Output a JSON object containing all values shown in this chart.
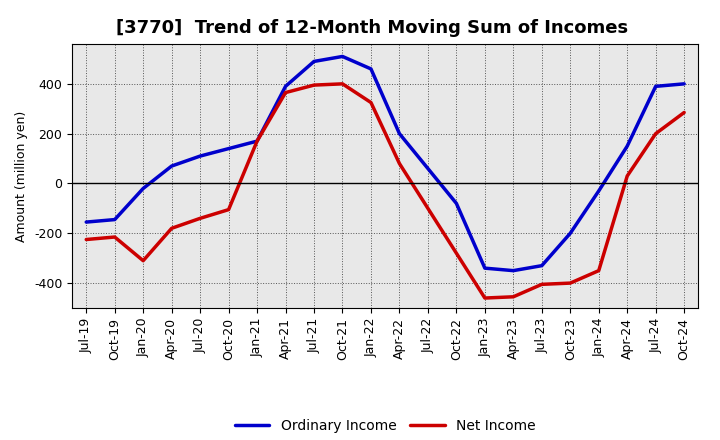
{
  "title": "[3770]  Trend of 12-Month Moving Sum of Incomes",
  "ylabel": "Amount (million yen)",
  "xlabels": [
    "Jul-19",
    "Oct-19",
    "Jan-20",
    "Apr-20",
    "Jul-20",
    "Oct-20",
    "Jan-21",
    "Apr-21",
    "Jul-21",
    "Oct-21",
    "Jan-22",
    "Apr-22",
    "Jul-22",
    "Oct-22",
    "Jan-23",
    "Apr-23",
    "Jul-23",
    "Oct-23",
    "Jan-24",
    "Apr-24",
    "Jul-24",
    "Oct-24"
  ],
  "ordinary_income": [
    -155,
    -145,
    -20,
    70,
    110,
    140,
    170,
    390,
    490,
    510,
    460,
    200,
    60,
    -80,
    -340,
    -350,
    -330,
    -200,
    -30,
    150,
    390,
    400
  ],
  "net_income": [
    -225,
    -215,
    -310,
    -180,
    -140,
    -105,
    170,
    365,
    395,
    400,
    325,
    80,
    -100,
    -280,
    -460,
    -455,
    -405,
    -400,
    -350,
    30,
    200,
    285
  ],
  "ordinary_color": "#0000cc",
  "net_color": "#cc0000",
  "ylim": [
    -500,
    560
  ],
  "yticks": [
    -400,
    -200,
    0,
    200,
    400
  ],
  "background_color": "#ffffff",
  "plot_bg_color": "#e8e8e8",
  "grid_color": "#555555",
  "title_fontsize": 13,
  "axis_fontsize": 9,
  "tick_fontsize": 9,
  "legend_fontsize": 10,
  "line_width": 2.5
}
